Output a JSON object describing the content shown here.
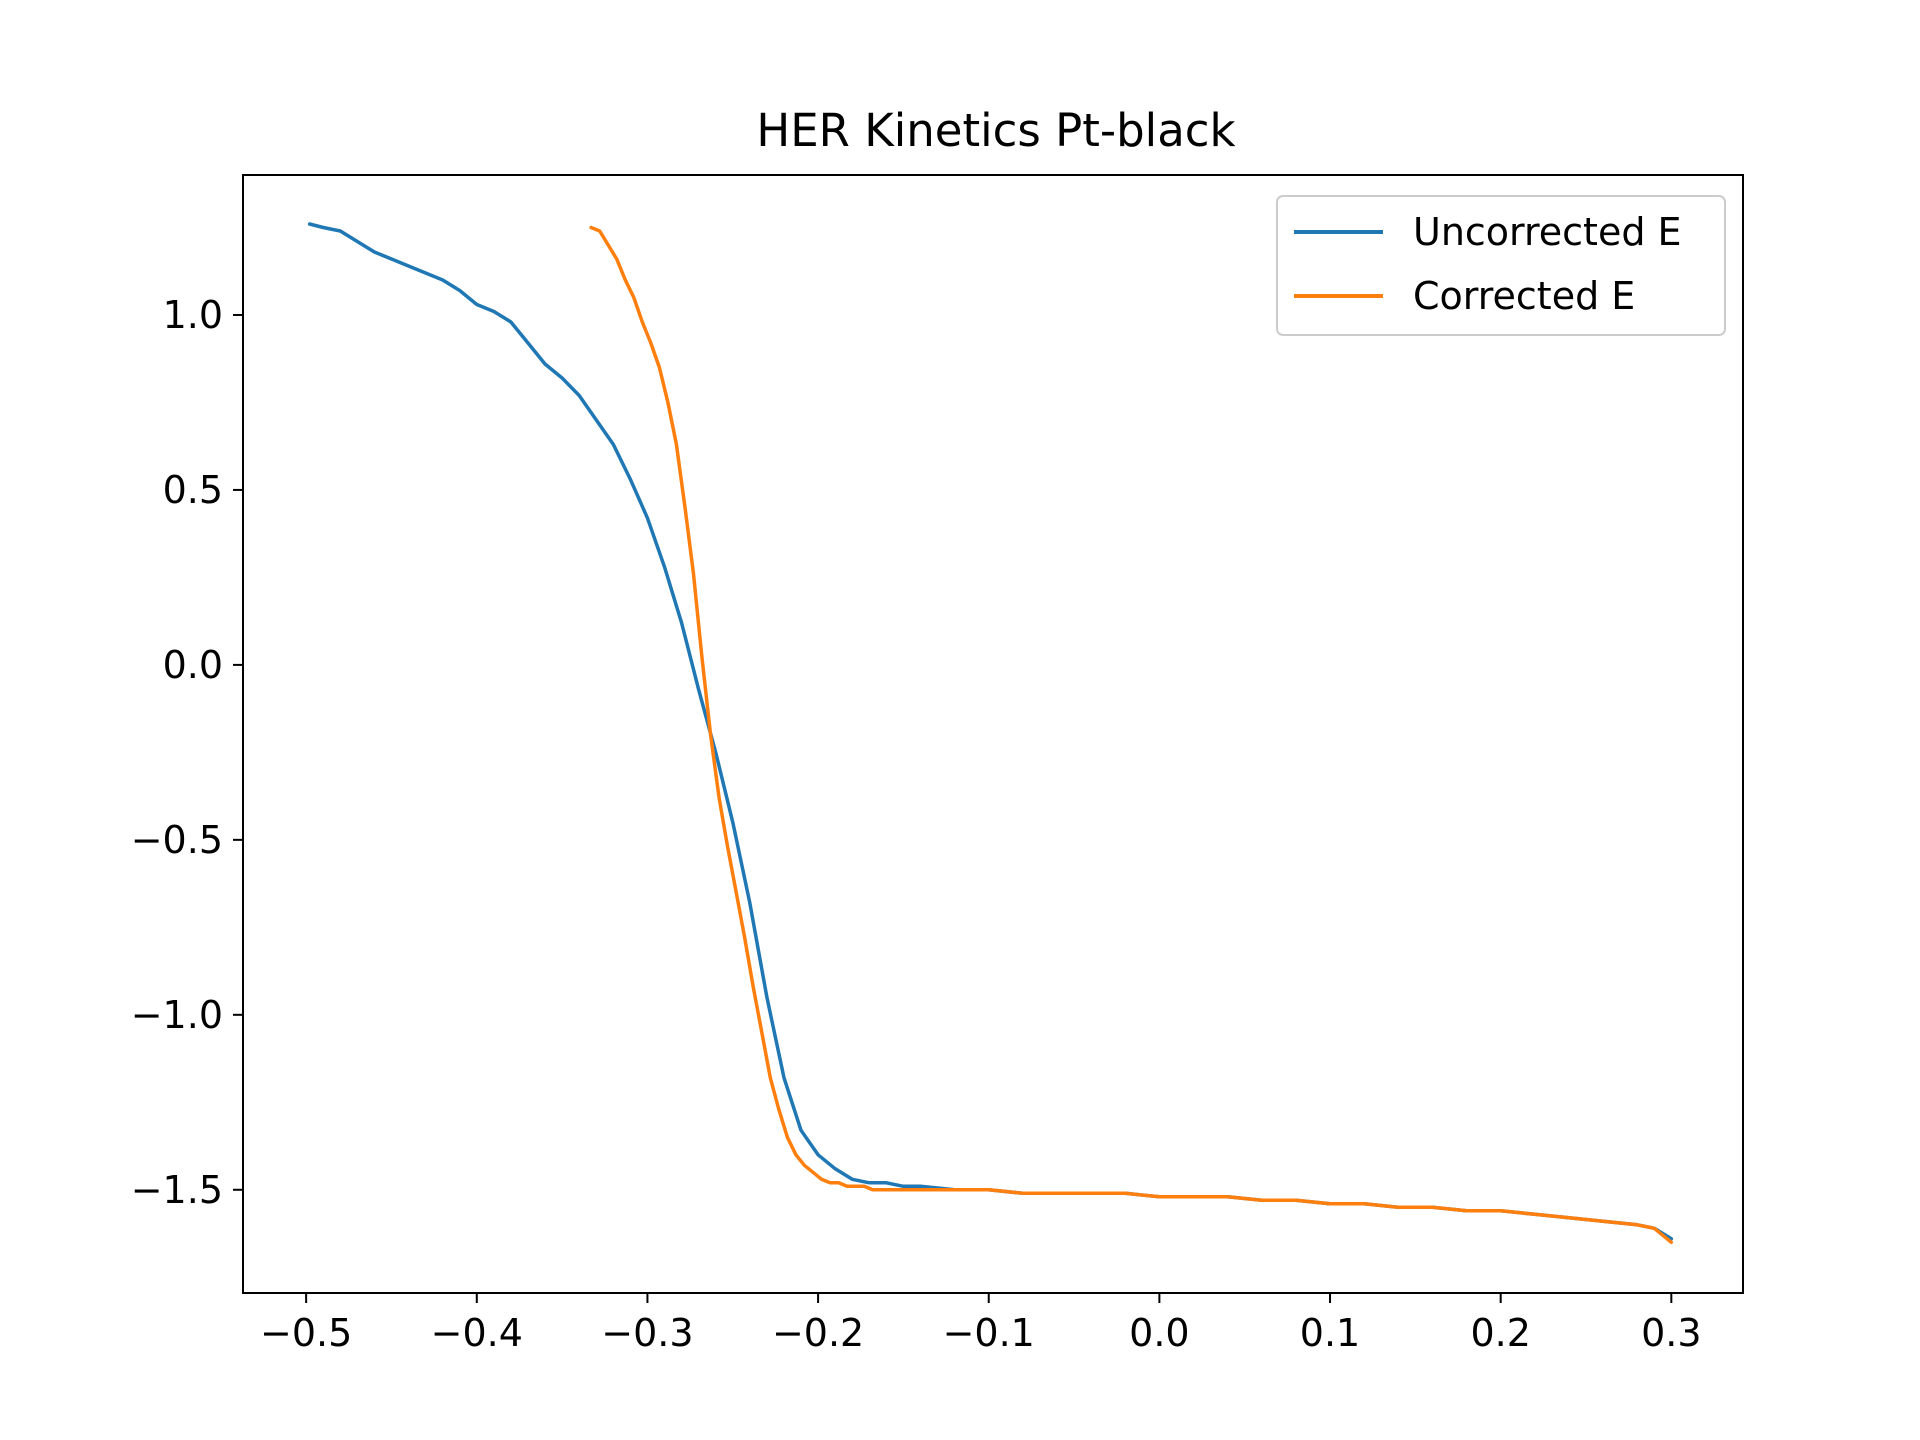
{
  "chart_data": {
    "type": "line",
    "title": "HER Kinetics Pt-black",
    "xlabel": "",
    "ylabel": "",
    "xlim": [
      -0.537,
      0.342
    ],
    "ylim": [
      -1.795,
      1.4
    ],
    "xticks": [
      -0.5,
      -0.4,
      -0.3,
      -0.2,
      -0.1,
      0.0,
      0.1,
      0.2,
      0.3
    ],
    "xtick_labels": [
      "−0.5",
      "−0.4",
      "−0.3",
      "−0.2",
      "−0.1",
      "0.0",
      "0.1",
      "0.2",
      "0.3"
    ],
    "yticks": [
      1.0,
      0.5,
      0.0,
      -0.5,
      -1.0,
      -1.5
    ],
    "ytick_labels": [
      "1.0",
      "0.5",
      "0.0",
      "−0.5",
      "−1.0",
      "−1.5"
    ],
    "grid": false,
    "legend_position": "top-right",
    "series": [
      {
        "name": "Uncorrected E",
        "color": "#1f77b4",
        "x": [
          -0.498,
          -0.49,
          -0.48,
          -0.47,
          -0.46,
          -0.45,
          -0.44,
          -0.43,
          -0.42,
          -0.41,
          -0.4,
          -0.39,
          -0.38,
          -0.37,
          -0.36,
          -0.35,
          -0.34,
          -0.33,
          -0.32,
          -0.31,
          -0.3,
          -0.29,
          -0.28,
          -0.27,
          -0.26,
          -0.25,
          -0.24,
          -0.23,
          -0.22,
          -0.21,
          -0.2,
          -0.19,
          -0.18,
          -0.17,
          -0.16,
          -0.15,
          -0.14,
          -0.12,
          -0.1,
          -0.08,
          -0.06,
          -0.04,
          -0.02,
          0.0,
          0.02,
          0.04,
          0.06,
          0.08,
          0.1,
          0.12,
          0.14,
          0.16,
          0.18,
          0.2,
          0.22,
          0.24,
          0.26,
          0.28,
          0.29,
          0.3
        ],
        "y": [
          1.26,
          1.25,
          1.24,
          1.21,
          1.18,
          1.16,
          1.14,
          1.12,
          1.1,
          1.07,
          1.03,
          1.01,
          0.98,
          0.92,
          0.86,
          0.82,
          0.77,
          0.7,
          0.63,
          0.53,
          0.42,
          0.28,
          0.12,
          -0.07,
          -0.25,
          -0.45,
          -0.68,
          -0.95,
          -1.18,
          -1.33,
          -1.4,
          -1.44,
          -1.47,
          -1.48,
          -1.48,
          -1.49,
          -1.49,
          -1.5,
          -1.5,
          -1.51,
          -1.51,
          -1.51,
          -1.51,
          -1.52,
          -1.52,
          -1.52,
          -1.53,
          -1.53,
          -1.54,
          -1.54,
          -1.55,
          -1.55,
          -1.56,
          -1.56,
          -1.57,
          -1.58,
          -1.59,
          -1.6,
          -1.61,
          -1.64
        ]
      },
      {
        "name": "Corrected E",
        "color": "#ff7f0e",
        "x": [
          -0.333,
          -0.328,
          -0.323,
          -0.318,
          -0.313,
          -0.308,
          -0.303,
          -0.298,
          -0.293,
          -0.288,
          -0.283,
          -0.278,
          -0.273,
          -0.268,
          -0.263,
          -0.258,
          -0.253,
          -0.248,
          -0.243,
          -0.238,
          -0.233,
          -0.228,
          -0.223,
          -0.218,
          -0.213,
          -0.208,
          -0.203,
          -0.198,
          -0.193,
          -0.188,
          -0.183,
          -0.178,
          -0.173,
          -0.168,
          -0.16,
          -0.15,
          -0.14,
          -0.12,
          -0.1,
          -0.08,
          -0.06,
          -0.04,
          -0.02,
          0.0,
          0.02,
          0.04,
          0.06,
          0.08,
          0.1,
          0.12,
          0.14,
          0.16,
          0.18,
          0.2,
          0.22,
          0.24,
          0.26,
          0.28,
          0.29,
          0.3
        ],
        "y": [
          1.25,
          1.24,
          1.2,
          1.16,
          1.1,
          1.05,
          0.98,
          0.92,
          0.85,
          0.75,
          0.63,
          0.45,
          0.26,
          0.02,
          -0.2,
          -0.38,
          -0.52,
          -0.65,
          -0.78,
          -0.92,
          -1.05,
          -1.18,
          -1.27,
          -1.35,
          -1.4,
          -1.43,
          -1.45,
          -1.47,
          -1.48,
          -1.48,
          -1.49,
          -1.49,
          -1.49,
          -1.5,
          -1.5,
          -1.5,
          -1.5,
          -1.5,
          -1.5,
          -1.51,
          -1.51,
          -1.51,
          -1.51,
          -1.52,
          -1.52,
          -1.52,
          -1.53,
          -1.53,
          -1.54,
          -1.54,
          -1.55,
          -1.55,
          -1.56,
          -1.56,
          -1.57,
          -1.58,
          -1.59,
          -1.6,
          -1.61,
          -1.65
        ]
      }
    ]
  }
}
